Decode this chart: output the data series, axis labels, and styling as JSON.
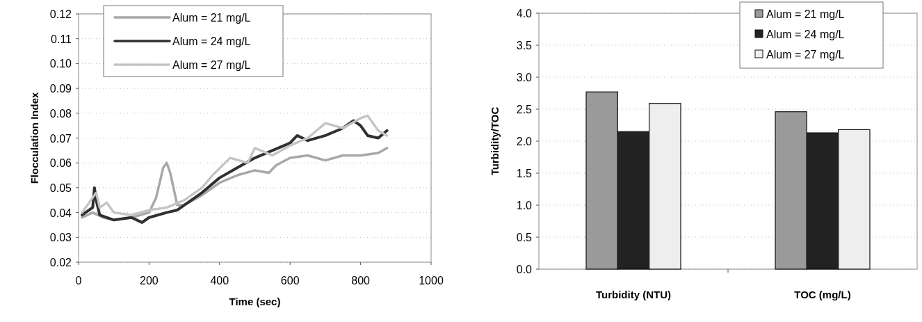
{
  "chart_data": [
    {
      "type": "line",
      "xlabel": "Time (sec)",
      "ylabel": "Flocculation Index",
      "xlim": [
        0,
        1000
      ],
      "ylim": [
        0.02,
        0.12
      ],
      "xticks": [
        0,
        200,
        400,
        600,
        800,
        1000
      ],
      "yticks": [
        {
          "value": 0.02,
          "label": "0.02"
        },
        {
          "value": 0.03,
          "label": "0.03"
        },
        {
          "value": 0.04,
          "label": "0.04"
        },
        {
          "value": 0.05,
          "label": "0.05"
        },
        {
          "value": 0.06,
          "label": "0.06"
        },
        {
          "value": 0.07,
          "label": "0.07"
        },
        {
          "value": 0.08,
          "label": "0.08"
        },
        {
          "value": 0.09,
          "label": "0.09"
        },
        {
          "value": 0.1,
          "label": "0.10"
        },
        {
          "value": 0.11,
          "label": "0.11"
        },
        {
          "value": 0.12,
          "label": "0.12"
        }
      ],
      "grid": "y",
      "legend": "top left",
      "series": [
        {
          "name": "Alum = 21 mg/L",
          "color": "#a8a8a8",
          "line_style": "solid",
          "x": [
            10,
            40,
            70,
            100,
            150,
            200,
            220,
            240,
            250,
            260,
            280,
            300,
            350,
            400,
            450,
            500,
            540,
            560,
            600,
            650,
            700,
            750,
            800,
            850,
            875
          ],
          "values": [
            0.038,
            0.04,
            0.038,
            0.037,
            0.038,
            0.04,
            0.046,
            0.058,
            0.06,
            0.056,
            0.043,
            0.043,
            0.047,
            0.052,
            0.055,
            0.057,
            0.056,
            0.059,
            0.062,
            0.063,
            0.061,
            0.063,
            0.063,
            0.064,
            0.066
          ]
        },
        {
          "name": "Alum = 24 mg/L",
          "color": "#303030",
          "line_style": "solid",
          "x": [
            10,
            40,
            45,
            50,
            60,
            100,
            150,
            180,
            200,
            250,
            280,
            300,
            350,
            400,
            450,
            500,
            550,
            600,
            620,
            650,
            700,
            750,
            780,
            800,
            820,
            850,
            875
          ],
          "values": [
            0.039,
            0.042,
            0.05,
            0.045,
            0.039,
            0.037,
            0.038,
            0.036,
            0.038,
            0.04,
            0.041,
            0.043,
            0.048,
            0.054,
            0.058,
            0.062,
            0.065,
            0.068,
            0.071,
            0.069,
            0.071,
            0.074,
            0.077,
            0.075,
            0.071,
            0.07,
            0.073
          ]
        },
        {
          "name": "Alum = 27 mg/L",
          "color": "#c4c4c4",
          "line_style": "dotted",
          "x": [
            10,
            50,
            60,
            80,
            100,
            150,
            200,
            250,
            300,
            350,
            380,
            430,
            480,
            500,
            550,
            600,
            650,
            700,
            750,
            800,
            820,
            850,
            875
          ],
          "values": [
            0.04,
            0.048,
            0.042,
            0.044,
            0.04,
            0.039,
            0.041,
            0.042,
            0.045,
            0.05,
            0.055,
            0.062,
            0.06,
            0.066,
            0.063,
            0.067,
            0.07,
            0.076,
            0.074,
            0.078,
            0.079,
            0.073,
            0.071
          ]
        }
      ]
    },
    {
      "type": "bar",
      "ylabel": "Turbidity/TOC",
      "categories": [
        "Turbidity (NTU)",
        "TOC (mg/L)"
      ],
      "ylim": [
        0,
        4
      ],
      "yticks": [
        {
          "value": 0,
          "label": "0.0"
        },
        {
          "value": 0.5,
          "label": "0.5"
        },
        {
          "value": 1,
          "label": "1.0"
        },
        {
          "value": 1.5,
          "label": "1.5"
        },
        {
          "value": 2,
          "label": "2.0"
        },
        {
          "value": 2.5,
          "label": "2.5"
        },
        {
          "value": 3,
          "label": "3.0"
        },
        {
          "value": 3.5,
          "label": "3.5"
        },
        {
          "value": 4,
          "label": "4.0"
        }
      ],
      "grid": "y",
      "legend": "top right",
      "series": [
        {
          "name": "Alum = 21 mg/L",
          "color": "#9a9a9a",
          "values": [
            2.77,
            2.46
          ]
        },
        {
          "name": "Alum = 24 mg/L",
          "color": "#222222",
          "values": [
            2.15,
            2.13
          ]
        },
        {
          "name": "Alum = 27 mg/L",
          "color": "#eeeeee",
          "values": [
            2.59,
            2.18
          ]
        }
      ]
    }
  ]
}
